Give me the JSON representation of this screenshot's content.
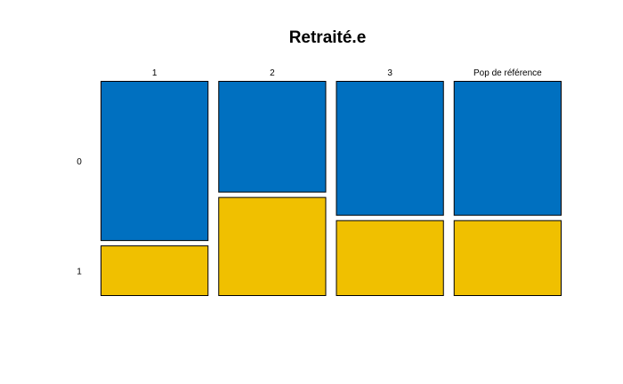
{
  "chart_data": {
    "type": "mosaic",
    "title": "Retraité.e",
    "categories": [
      "1",
      "2",
      "3",
      "Pop de référence"
    ],
    "row_labels": [
      "0",
      "1"
    ],
    "series": [
      {
        "name": "0",
        "color": "#0070C0",
        "proportions": [
          0.76,
          0.53,
          0.64,
          0.64
        ]
      },
      {
        "name": "1",
        "color": "#F0C000",
        "proportions": [
          0.24,
          0.47,
          0.36,
          0.36
        ]
      }
    ],
    "column_widths": [
      1,
      1,
      1,
      1
    ]
  }
}
